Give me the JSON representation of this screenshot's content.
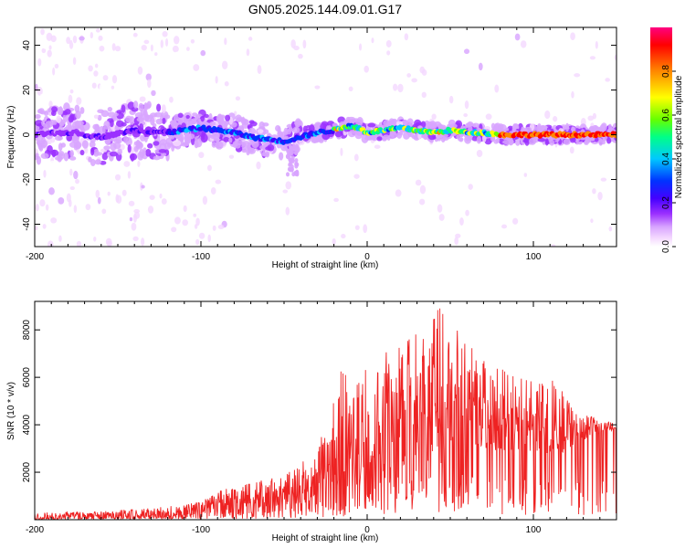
{
  "title": "GN05.2025.144.09.01.G17",
  "colors": {
    "background": "#ffffff",
    "axis": "#000000",
    "snr_line": "#ee2222",
    "colormap": [
      "#ffffff",
      "#f4d8ff",
      "#d8a4ff",
      "#9b30ff",
      "#4400ff",
      "#0033ff",
      "#00c8ff",
      "#00ff88",
      "#66ff00",
      "#ffff00",
      "#ff8800",
      "#ff0000",
      "#ff0080"
    ]
  },
  "chart_data": [
    {
      "type": "heatmap",
      "name": "spectrogram",
      "title": "",
      "xlabel": "Height of straight line (km)",
      "ylabel": "Frequency (Hz)",
      "xlim": [
        -200,
        150
      ],
      "ylim": [
        -50,
        48
      ],
      "x_ticks": [
        -200,
        -100,
        0,
        100
      ],
      "x_tick_labels": [
        "-200",
        "-100",
        "0",
        "100"
      ],
      "y_ticks": [
        -40,
        -20,
        0,
        20,
        40
      ],
      "y_tick_labels": [
        "-40",
        "-20",
        "0",
        "20",
        "40"
      ],
      "ridge": {
        "x": [
          -200,
          -180,
          -160,
          -140,
          -120,
          -100,
          -90,
          -80,
          -70,
          -60,
          -50,
          -45,
          -40,
          -30,
          -20,
          -12,
          -5,
          0,
          10,
          20,
          30,
          40,
          50,
          60,
          70,
          80,
          90,
          100,
          120,
          150
        ],
        "y": [
          0,
          1,
          -1,
          2,
          1,
          3,
          2,
          1,
          -1,
          -2,
          -3,
          -2,
          -1,
          1,
          2,
          4,
          3,
          1,
          2,
          3,
          2,
          1,
          2,
          1,
          1,
          0,
          0,
          0,
          0,
          0
        ]
      },
      "colorbar": {
        "label": "Normalized spectral amplitude",
        "range": [
          0,
          1
        ],
        "ticks": [
          0.0,
          0.2,
          0.4,
          0.6,
          0.8
        ],
        "tick_labels": [
          "0.0",
          "0.2",
          "0.4",
          "0.6",
          "0.8"
        ]
      }
    },
    {
      "type": "line",
      "name": "snr",
      "title": "",
      "xlabel": "Height of straight line (km)",
      "ylabel": "SNR (10 * v/v)",
      "xlim": [
        -200,
        150
      ],
      "ylim": [
        0,
        9200
      ],
      "x_ticks": [
        -200,
        -100,
        0,
        100
      ],
      "x_tick_labels": [
        "-200",
        "-100",
        "0",
        "100"
      ],
      "y_ticks": [
        2000,
        4000,
        6000,
        8000
      ],
      "y_tick_labels": [
        "2000",
        "4000",
        "6000",
        "8000"
      ],
      "envelope": {
        "x": [
          -200,
          -160,
          -130,
          -110,
          -100,
          -90,
          -80,
          -70,
          -60,
          -50,
          -40,
          -30,
          -25,
          -20,
          -15,
          -10,
          -5,
          0,
          10,
          20,
          25,
          30,
          40,
          45,
          50,
          60,
          70,
          80,
          90,
          100,
          110,
          120,
          130,
          140,
          150
        ],
        "mean": [
          100,
          150,
          200,
          300,
          400,
          600,
          700,
          800,
          900,
          1000,
          1200,
          1500,
          2200,
          2500,
          2800,
          2600,
          2800,
          3000,
          3200,
          3300,
          3600,
          3800,
          4000,
          4200,
          4300,
          4200,
          4100,
          4000,
          3900,
          3800,
          3700,
          3600,
          3700,
          3800,
          3900
        ],
        "peak": [
          300,
          350,
          500,
          650,
          800,
          1200,
          1400,
          1600,
          1700,
          1900,
          2400,
          3000,
          4500,
          5000,
          6500,
          5500,
          6000,
          6800,
          7000,
          7500,
          7600,
          8000,
          8500,
          9200,
          8400,
          7500,
          6800,
          6500,
          6200,
          5800,
          6000,
          5200,
          4500,
          4200,
          4100
        ]
      }
    }
  ]
}
